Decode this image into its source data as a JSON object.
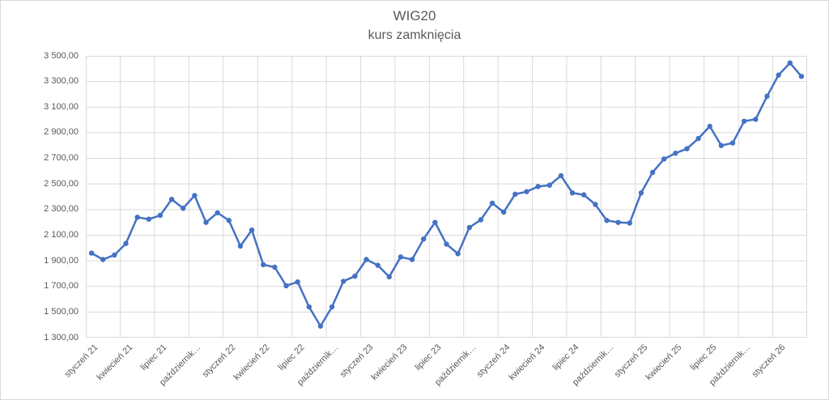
{
  "chart_data": {
    "type": "line",
    "title": "WIG20",
    "subtitle": "kurs zamknięcia",
    "series_name": "kurs zamknięcia",
    "x_first_label": "styczeń 21",
    "x_last_label": "styczeń 26",
    "x_tick_labels": [
      "styczeń 21",
      "kwiecień 21",
      "lipiec 21",
      "październik…",
      "styczeń 22",
      "kwiecień 22",
      "lipiec 22",
      "październik…",
      "styczeń 23",
      "kwiecień 23",
      "lipiec 23",
      "październik…",
      "styczeń 24",
      "kwiecień 24",
      "lipiec 24",
      "październik…",
      "styczeń 25",
      "kwiecień 25",
      "lipiec 25",
      "październik…",
      "styczeń 26"
    ],
    "x_tick_every": 3,
    "values": [
      1960,
      1910,
      1945,
      2035,
      2240,
      2225,
      2255,
      2380,
      2310,
      2410,
      2200,
      2275,
      2215,
      2015,
      2140,
      1870,
      1850,
      1705,
      1735,
      1540,
      1390,
      1540,
      1740,
      1780,
      1910,
      1865,
      1775,
      1930,
      1910,
      2070,
      2200,
      2030,
      1955,
      2160,
      2220,
      2350,
      2280,
      2420,
      2440,
      2480,
      2490,
      2565,
      2430,
      2415,
      2340,
      2215,
      2200,
      2195,
      2430,
      2590,
      2695,
      2740,
      2775,
      2855,
      2950,
      2800,
      2820,
      2990,
      3005,
      3185,
      3350,
      3445,
      3340
    ],
    "ylim": [
      1300,
      3500
    ],
    "y_step": 200,
    "y_tick_labels": [
      "1 300,00",
      "1 500,00",
      "1 700,00",
      "1 900,00",
      "2 100,00",
      "2 300,00",
      "2 500,00",
      "2 700,00",
      "2 900,00",
      "3 100,00",
      "3 300,00",
      "3 500,00"
    ],
    "grid": true,
    "legend": "none",
    "markers": true,
    "line_color": "#4472C4",
    "gridline_color": "#d9d9d9",
    "text_color": "#595959",
    "background_color": "#ffffff"
  }
}
